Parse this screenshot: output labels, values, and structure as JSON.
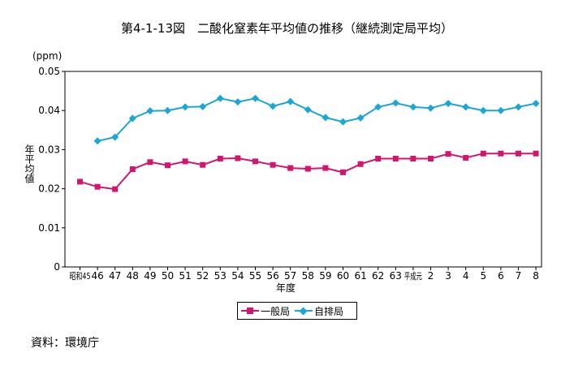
{
  "figure": {
    "title": "第4-1-13図　二酸化窒素年平均値の推移（継続測定局平均）",
    "unit": "(ppm)",
    "ylabel": "年平均値",
    "xlabel": "年度",
    "source": "資料：環境庁"
  },
  "chart_data": {
    "type": "line",
    "categories": [
      "昭和45",
      "46",
      "47",
      "48",
      "49",
      "50",
      "51",
      "52",
      "53",
      "54",
      "55",
      "56",
      "57",
      "58",
      "59",
      "60",
      "61",
      "62",
      "63",
      "平成元",
      "2",
      "3",
      "4",
      "5",
      "6",
      "7",
      "8"
    ],
    "ylim": [
      0,
      0.05
    ],
    "yticks": [
      "0",
      "0.01",
      "0.02",
      "0.03",
      "0.04",
      "0.05"
    ],
    "legend_position": "bottom",
    "series": [
      {
        "name": "一般局",
        "color": "#d4146f",
        "marker": "square",
        "values": [
          0.0218,
          0.0205,
          0.0199,
          0.025,
          0.0268,
          0.026,
          0.027,
          0.0261,
          0.0277,
          0.0278,
          0.027,
          0.0261,
          0.0253,
          0.0251,
          0.0253,
          0.0242,
          0.0263,
          0.0277,
          0.0277,
          0.0277,
          0.0277,
          0.0289,
          0.0279,
          0.029,
          0.029,
          0.029,
          0.029
        ]
      },
      {
        "name": "自排局",
        "color": "#1aa6d6",
        "marker": "diamond",
        "values": [
          null,
          0.0322,
          0.0332,
          0.038,
          0.0399,
          0.04,
          0.0409,
          0.041,
          0.0431,
          0.0422,
          0.0431,
          0.0411,
          0.0423,
          0.0402,
          0.0382,
          0.0371,
          0.0381,
          0.0409,
          0.0419,
          0.0409,
          0.0406,
          0.0418,
          0.0409,
          0.04,
          0.04,
          0.0409,
          0.0418
        ]
      }
    ]
  }
}
